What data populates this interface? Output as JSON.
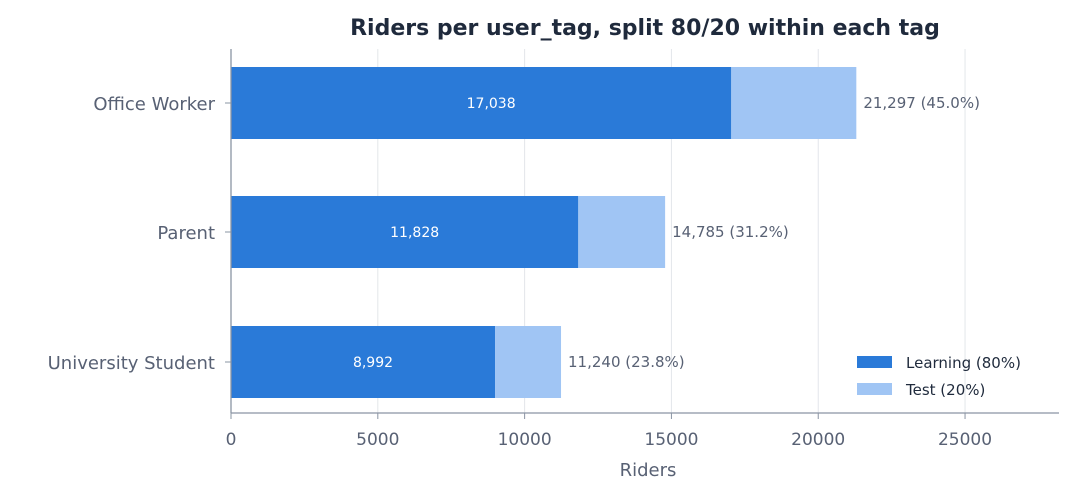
{
  "chart_data": {
    "type": "bar",
    "orientation": "horizontal",
    "stacked": true,
    "title": "Riders per user_tag, split 80/20 within each tag",
    "xlabel": "Riders",
    "ylabel": "",
    "xlim": [
      0,
      28200
    ],
    "xticks": [
      "0",
      "5000",
      "10000",
      "15000",
      "20000",
      "25000"
    ],
    "categories": [
      "Office Worker",
      "Parent",
      "University Student"
    ],
    "series": [
      {
        "name": "Learning (80%)",
        "values": [
          17038,
          11828,
          8992
        ],
        "color": "#2a7ad8",
        "labels": [
          "17,038",
          "11,828",
          "8,992"
        ]
      },
      {
        "name": "Test (20%)",
        "values": [
          4259,
          2957,
          2248
        ],
        "color": "#a0c5f4"
      }
    ],
    "totals": [
      21297,
      14785,
      11240
    ],
    "total_labels": [
      "21,297  (45.0%)",
      "14,785  (31.2%)",
      "11,240  (23.8%)"
    ],
    "grid": "vertical",
    "legend_position": "lower-right"
  }
}
